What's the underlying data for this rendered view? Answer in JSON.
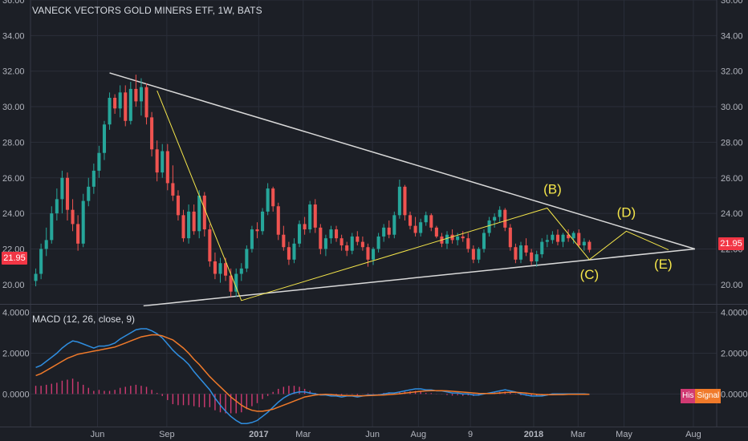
{
  "title": "VANECK VECTORS GOLD MINERS ETF, 1W, BATS",
  "macd_title": "MACD (12, 26, close, 9)",
  "last_price": "21.95",
  "legend": {
    "hist": "His",
    "signal": "Signal"
  },
  "colors": {
    "background": "#1c1f26",
    "grid": "#2a2e39",
    "up": "#26a69a",
    "down": "#ef5350",
    "trendline": "#d9d9d9",
    "wave": "#f5e64a",
    "label": "#f5e64a",
    "macd": "#2f8ee0",
    "signal": "#f07a2a",
    "hist": "#d13a72",
    "price_tag": "#f23645"
  },
  "chart_data": [
    {
      "type": "candlestick",
      "title": "VANECK VECTORS GOLD MINERS ETF, 1W, BATS",
      "interval": "1W",
      "ylim": [
        19,
        36
      ],
      "y_ticks": [
        "20.00",
        "22.00",
        "24.00",
        "26.00",
        "28.00",
        "30.00",
        "32.00",
        "34.00",
        "36.00"
      ],
      "x_ticks": [
        "Jun",
        "Sep",
        "2017",
        "Mar",
        "Jun",
        "Aug",
        "9",
        "2018",
        "Mar",
        "May",
        "Aug"
      ],
      "x_tick_dates": [
        "2016-06-01",
        "2016-09-01",
        "2017-01-01",
        "2017-03-01",
        "2017-06-01",
        "2017-08-01",
        "2017-10-09",
        "2018-01-01",
        "2018-03-01",
        "2018-05-01",
        "2018-08-01"
      ],
      "x_range": [
        "2016-03-04",
        "2018-09-01"
      ],
      "grid": true,
      "start_date": "2016-03-11",
      "ohlc": [
        [
          20.2,
          20.9,
          19.9,
          20.6
        ],
        [
          20.6,
          22.3,
          20.3,
          22.0
        ],
        [
          22.0,
          23.2,
          21.6,
          22.5
        ],
        [
          22.5,
          24.4,
          22.3,
          24.0
        ],
        [
          24.0,
          25.4,
          23.6,
          24.8
        ],
        [
          24.8,
          26.4,
          24.0,
          26.0
        ],
        [
          26.0,
          26.3,
          23.6,
          24.2
        ],
        [
          24.2,
          24.8,
          23.0,
          23.4
        ],
        [
          23.4,
          23.9,
          21.9,
          22.3
        ],
        [
          22.3,
          25.1,
          22.1,
          24.7
        ],
        [
          24.7,
          26.0,
          24.4,
          25.5
        ],
        [
          25.5,
          26.8,
          25.1,
          26.4
        ],
        [
          26.4,
          27.8,
          26.0,
          27.4
        ],
        [
          27.4,
          29.2,
          27.0,
          29.0
        ],
        [
          29.0,
          30.8,
          28.7,
          30.5
        ],
        [
          30.5,
          30.7,
          29.6,
          29.9
        ],
        [
          29.9,
          31.2,
          29.4,
          30.8
        ],
        [
          30.8,
          31.2,
          28.9,
          29.2
        ],
        [
          29.2,
          31.4,
          29.0,
          31.0
        ],
        [
          31.0,
          31.8,
          30.0,
          30.3
        ],
        [
          30.3,
          31.6,
          29.5,
          31.1
        ],
        [
          31.1,
          31.3,
          29.0,
          29.4
        ],
        [
          29.4,
          29.7,
          27.2,
          27.6
        ],
        [
          27.6,
          28.1,
          25.8,
          26.3
        ],
        [
          26.3,
          27.9,
          26.0,
          27.5
        ],
        [
          27.5,
          27.9,
          25.3,
          25.7
        ],
        [
          25.7,
          26.7,
          24.7,
          25.0
        ],
        [
          25.0,
          25.3,
          23.6,
          23.9
        ],
        [
          23.9,
          24.2,
          22.4,
          22.6
        ],
        [
          22.6,
          24.5,
          22.3,
          24.1
        ],
        [
          24.1,
          24.5,
          22.8,
          23.0
        ],
        [
          23.0,
          25.3,
          22.6,
          25.0
        ],
        [
          25.0,
          25.2,
          22.7,
          23.1
        ],
        [
          23.1,
          23.4,
          21.0,
          21.3
        ],
        [
          21.3,
          21.8,
          20.3,
          20.6
        ],
        [
          20.6,
          21.5,
          20.1,
          21.2
        ],
        [
          21.2,
          21.5,
          20.2,
          20.5
        ],
        [
          20.5,
          20.9,
          19.3,
          19.6
        ],
        [
          19.6,
          20.9,
          19.3,
          20.6
        ],
        [
          20.6,
          21.2,
          20.2,
          20.9
        ],
        [
          20.9,
          22.2,
          20.7,
          22.0
        ],
        [
          22.0,
          23.3,
          21.8,
          23.1
        ],
        [
          23.1,
          23.5,
          22.6,
          23.0
        ],
        [
          23.0,
          24.3,
          22.8,
          24.1
        ],
        [
          24.1,
          25.7,
          23.9,
          25.4
        ],
        [
          25.4,
          25.5,
          24.1,
          24.4
        ],
        [
          24.4,
          24.6,
          22.5,
          22.8
        ],
        [
          22.8,
          23.3,
          21.9,
          22.1
        ],
        [
          22.1,
          22.4,
          21.1,
          21.4
        ],
        [
          21.4,
          22.6,
          21.2,
          22.3
        ],
        [
          22.3,
          23.6,
          22.1,
          23.4
        ],
        [
          23.4,
          23.8,
          22.8,
          23.1
        ],
        [
          23.1,
          24.7,
          22.9,
          24.5
        ],
        [
          24.5,
          24.8,
          22.9,
          23.2
        ],
        [
          23.2,
          23.4,
          21.7,
          22.0
        ],
        [
          22.0,
          22.8,
          21.6,
          22.6
        ],
        [
          22.6,
          23.3,
          22.3,
          23.1
        ],
        [
          23.1,
          23.3,
          22.4,
          22.6
        ],
        [
          22.6,
          22.8,
          21.9,
          22.2
        ],
        [
          22.2,
          22.4,
          21.6,
          21.9
        ],
        [
          21.9,
          22.9,
          21.7,
          22.7
        ],
        [
          22.7,
          23.0,
          22.2,
          22.4
        ],
        [
          22.4,
          22.7,
          21.9,
          22.1
        ],
        [
          22.1,
          22.3,
          21.0,
          21.4
        ],
        [
          21.4,
          22.1,
          21.1,
          22.0
        ],
        [
          22.0,
          22.9,
          21.8,
          22.7
        ],
        [
          22.7,
          23.4,
          22.4,
          23.2
        ],
        [
          23.2,
          23.6,
          22.6,
          22.8
        ],
        [
          22.8,
          24.1,
          22.6,
          23.9
        ],
        [
          23.9,
          25.9,
          23.7,
          25.5
        ],
        [
          25.5,
          25.6,
          23.6,
          23.9
        ],
        [
          23.9,
          24.1,
          23.1,
          23.3
        ],
        [
          23.3,
          23.8,
          22.7,
          22.9
        ],
        [
          22.9,
          23.7,
          22.7,
          23.5
        ],
        [
          23.5,
          24.1,
          23.3,
          23.9
        ],
        [
          23.9,
          24.0,
          23.0,
          23.2
        ],
        [
          23.2,
          23.3,
          22.6,
          22.7
        ],
        [
          22.7,
          22.9,
          22.1,
          22.3
        ],
        [
          22.3,
          23.0,
          22.0,
          22.8
        ],
        [
          22.8,
          23.1,
          22.3,
          22.5
        ],
        [
          22.5,
          22.9,
          22.2,
          22.7
        ],
        [
          22.7,
          23.0,
          22.4,
          22.6
        ],
        [
          22.6,
          22.9,
          21.8,
          22.0
        ],
        [
          22.0,
          22.2,
          21.2,
          21.4
        ],
        [
          21.4,
          22.1,
          21.2,
          22.0
        ],
        [
          22.0,
          23.1,
          21.8,
          22.9
        ],
        [
          22.9,
          23.8,
          22.7,
          23.6
        ],
        [
          23.6,
          24.0,
          23.2,
          23.8
        ],
        [
          23.8,
          24.4,
          23.5,
          24.2
        ],
        [
          24.2,
          24.3,
          23.0,
          23.2
        ],
        [
          23.2,
          23.4,
          21.9,
          22.1
        ],
        [
          22.1,
          22.3,
          21.2,
          21.4
        ],
        [
          21.4,
          22.4,
          21.2,
          22.2
        ],
        [
          22.2,
          22.6,
          21.6,
          21.8
        ],
        [
          21.8,
          22.0,
          21.1,
          21.3
        ],
        [
          21.3,
          21.9,
          21.0,
          21.7
        ],
        [
          21.7,
          22.6,
          21.5,
          22.4
        ],
        [
          22.4,
          22.8,
          22.1,
          22.5
        ],
        [
          22.5,
          23.0,
          22.3,
          22.8
        ],
        [
          22.8,
          23.1,
          22.2,
          22.4
        ],
        [
          22.4,
          22.9,
          22.1,
          22.8
        ],
        [
          22.8,
          23.1,
          22.4,
          22.6
        ],
        [
          22.6,
          23.0,
          22.3,
          22.9
        ],
        [
          22.9,
          23.1,
          22.1,
          22.2
        ],
        [
          22.2,
          22.6,
          21.9,
          22.4
        ],
        [
          22.4,
          22.5,
          21.8,
          21.95
        ]
      ],
      "trendlines": [
        {
          "from": [
            "2016-06-17",
            31.9
          ],
          "to": [
            "2018-08-03",
            22.0
          ]
        },
        {
          "from": [
            "2016-08-01",
            18.8
          ],
          "to": [
            "2018-08-03",
            22.0
          ]
        }
      ],
      "wave_path": [
        [
          "2016-08-19",
          30.9
        ],
        [
          "2016-12-09",
          19.1
        ],
        [
          "2018-01-19",
          24.3
        ],
        [
          "2018-03-16",
          21.4
        ],
        [
          "2018-05-04",
          23.0
        ],
        [
          "2018-06-29",
          21.95
        ]
      ],
      "annotations": [
        {
          "text": "(B)",
          "date": "2018-01-26",
          "y": 25.1
        },
        {
          "text": "(C)",
          "date": "2018-03-16",
          "y": 20.3
        },
        {
          "text": "(D)",
          "date": "2018-05-04",
          "y": 23.8
        },
        {
          "text": "(E)",
          "date": "2018-06-22",
          "y": 20.9
        }
      ],
      "last_price": 21.95
    },
    {
      "type": "line",
      "title": "MACD (12, 26, close, 9)",
      "ylim": [
        -1.6,
        4.3
      ],
      "y_ticks": [
        "4.0000",
        "2.0000",
        "0.0000"
      ],
      "grid": true,
      "series": [
        {
          "name": "MACD",
          "values": [
            1.3,
            1.4,
            1.6,
            1.8,
            2.0,
            2.25,
            2.45,
            2.6,
            2.55,
            2.45,
            2.35,
            2.25,
            2.35,
            2.35,
            2.4,
            2.5,
            2.7,
            2.85,
            3.0,
            3.15,
            3.2,
            3.2,
            3.1,
            2.95,
            2.75,
            2.45,
            2.15,
            1.9,
            1.7,
            1.45,
            1.1,
            0.8,
            0.5,
            0.2,
            -0.2,
            -0.55,
            -0.85,
            -1.1,
            -1.3,
            -1.45,
            -1.45,
            -1.4,
            -1.3,
            -1.1,
            -0.9,
            -0.65,
            -0.4,
            -0.2,
            -0.05,
            0.05,
            0.1,
            0.1,
            0.05,
            0.0,
            -0.05,
            -0.05,
            -0.1,
            -0.1,
            -0.15,
            -0.1,
            -0.1,
            -0.15,
            -0.1,
            -0.05,
            -0.05,
            -0.05,
            0.0,
            0.05,
            0.05,
            0.1,
            0.15,
            0.2,
            0.25,
            0.25,
            0.2,
            0.2,
            0.15,
            0.15,
            0.1,
            0.05,
            0.05,
            0.0,
            0.0,
            -0.05,
            -0.05,
            0.0,
            0.05,
            0.1,
            0.15,
            0.2,
            0.15,
            0.1,
            0.0,
            -0.05,
            -0.1,
            -0.1,
            -0.1,
            -0.05,
            0.0,
            0.0,
            0.0,
            0.0,
            0.0,
            0.0,
            0.0,
            -0.02
          ]
        },
        {
          "name": "Signal",
          "values": [
            0.9,
            1.0,
            1.15,
            1.3,
            1.45,
            1.6,
            1.75,
            1.85,
            1.95,
            2.0,
            2.05,
            2.1,
            2.15,
            2.2,
            2.25,
            2.3,
            2.4,
            2.5,
            2.6,
            2.7,
            2.8,
            2.85,
            2.9,
            2.9,
            2.85,
            2.75,
            2.65,
            2.45,
            2.25,
            2.0,
            1.7,
            1.45,
            1.15,
            0.85,
            0.6,
            0.35,
            0.1,
            -0.15,
            -0.35,
            -0.55,
            -0.7,
            -0.8,
            -0.85,
            -0.85,
            -0.8,
            -0.75,
            -0.65,
            -0.55,
            -0.45,
            -0.35,
            -0.25,
            -0.15,
            -0.1,
            -0.05,
            -0.03,
            -0.02,
            -0.03,
            -0.05,
            -0.07,
            -0.08,
            -0.08,
            -0.09,
            -0.09,
            -0.08,
            -0.07,
            -0.06,
            -0.05,
            -0.03,
            -0.01,
            0.01,
            0.04,
            0.07,
            0.1,
            0.13,
            0.15,
            0.16,
            0.16,
            0.16,
            0.15,
            0.13,
            0.11,
            0.09,
            0.07,
            0.05,
            0.03,
            0.02,
            0.02,
            0.03,
            0.05,
            0.07,
            0.08,
            0.08,
            0.06,
            0.04,
            0.01,
            -0.02,
            -0.04,
            -0.04,
            -0.04,
            -0.03,
            -0.03,
            -0.02,
            -0.02,
            -0.02,
            -0.02,
            -0.02
          ]
        }
      ],
      "histogram": [
        0.4,
        0.4,
        0.45,
        0.5,
        0.55,
        0.65,
        0.7,
        0.75,
        0.6,
        0.45,
        0.3,
        0.15,
        0.2,
        0.15,
        0.15,
        0.2,
        0.3,
        0.35,
        0.4,
        0.45,
        0.4,
        0.35,
        0.2,
        0.05,
        -0.1,
        -0.3,
        -0.5,
        -0.55,
        -0.55,
        -0.55,
        -0.6,
        -0.65,
        -0.65,
        -0.65,
        -0.8,
        -0.9,
        -0.95,
        -0.95,
        -0.95,
        -0.9,
        -0.75,
        -0.6,
        -0.45,
        -0.25,
        -0.1,
        0.1,
        0.25,
        0.35,
        0.4,
        0.4,
        0.35,
        0.25,
        0.15,
        0.05,
        -0.02,
        -0.03,
        -0.07,
        -0.05,
        -0.08,
        -0.02,
        -0.02,
        -0.06,
        -0.01,
        0.03,
        0.02,
        0.01,
        0.05,
        0.08,
        0.06,
        0.09,
        0.11,
        0.13,
        0.15,
        0.12,
        0.05,
        0.04,
        -0.01,
        -0.01,
        -0.05,
        -0.08,
        -0.06,
        -0.09,
        -0.07,
        -0.1,
        -0.08,
        -0.02,
        0.03,
        0.07,
        0.1,
        0.12,
        0.07,
        0.02,
        -0.06,
        -0.09,
        -0.11,
        -0.08,
        -0.06,
        -0.01,
        0.03,
        0.03,
        0.02,
        0.02,
        0.02,
        0.02,
        0.02,
        0.0
      ]
    }
  ]
}
